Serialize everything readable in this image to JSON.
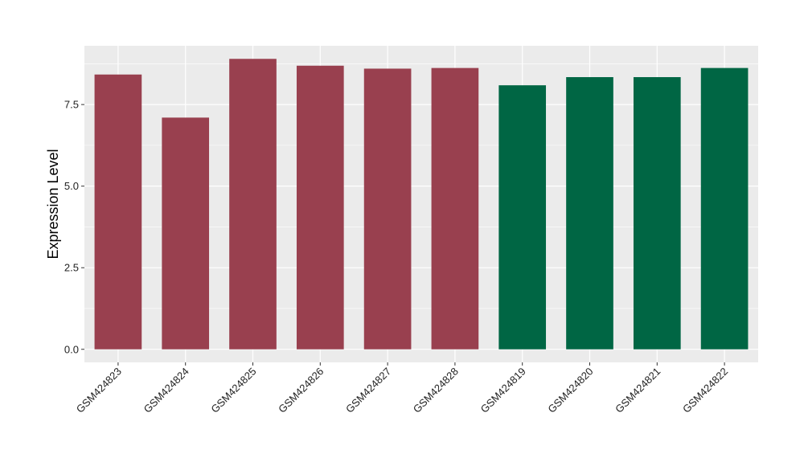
{
  "chart_data": {
    "type": "bar",
    "title": "",
    "xlabel": "",
    "ylabel": "Expression Level",
    "ylim": [
      -0.4,
      9.3
    ],
    "yticks": [
      0.0,
      2.5,
      5.0,
      7.5
    ],
    "ytick_labels": [
      "0.0",
      "2.5",
      "5.0",
      "7.5"
    ],
    "grid": true,
    "legend": "none",
    "categories": [
      "GSM424823",
      "GSM424824",
      "GSM424825",
      "GSM424826",
      "GSM424827",
      "GSM424828",
      "GSM424819",
      "GSM424820",
      "GSM424821",
      "GSM424822"
    ],
    "values": [
      8.42,
      7.1,
      8.9,
      8.69,
      8.6,
      8.62,
      8.09,
      8.34,
      8.34,
      8.62
    ],
    "bar_colors": [
      "#99404f",
      "#99404f",
      "#99404f",
      "#99404f",
      "#99404f",
      "#99404f",
      "#006644",
      "#006644",
      "#006644",
      "#006644"
    ],
    "panel_color": "#ebebeb",
    "grid_color": "#ffffff"
  }
}
